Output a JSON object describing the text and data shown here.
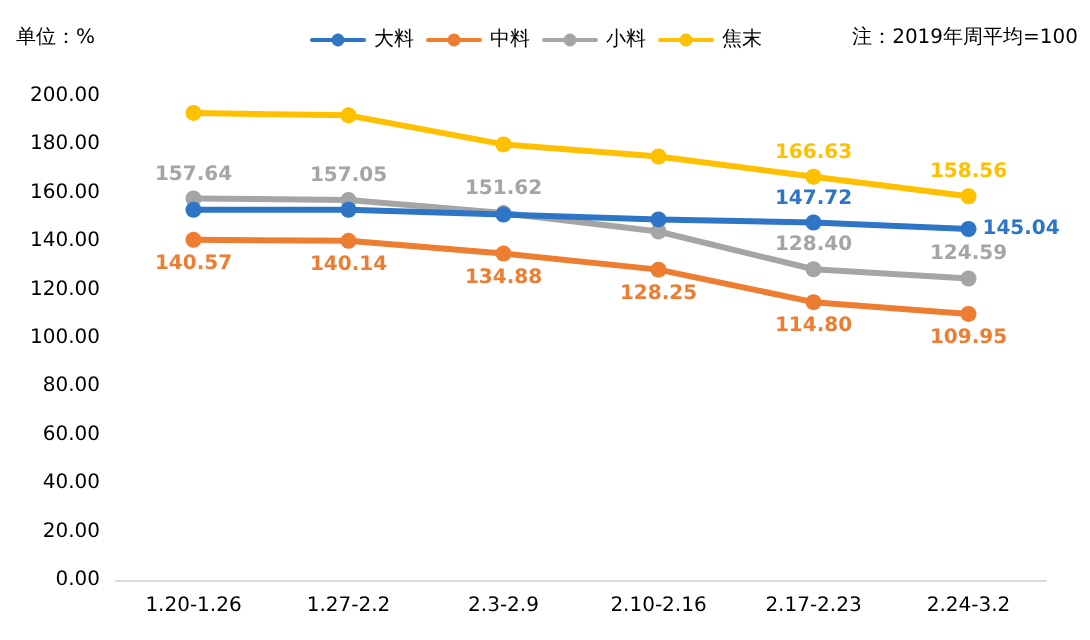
{
  "chart_data": {
    "type": "line",
    "categories": [
      "1.20-1.26",
      "1.27-2.2",
      "2.3-2.9",
      "2.10-2.16",
      "2.17-2.23",
      "2.24-3.2"
    ],
    "series": [
      {
        "name": "大料",
        "color": "#2e75c6",
        "values": [
          153,
          153,
          151,
          149,
          147.72,
          145.04
        ],
        "value_labels": [
          null,
          null,
          null,
          null,
          "147.72",
          "145.04"
        ]
      },
      {
        "name": "中料",
        "color": "#ed7d31",
        "values": [
          140.57,
          140.14,
          134.88,
          128.25,
          114.8,
          109.95
        ],
        "value_labels": [
          "140.57",
          "140.14",
          "134.88",
          "128.25",
          "114.80",
          "109.95"
        ]
      },
      {
        "name": "小料",
        "color": "#a5a5a5",
        "values": [
          157.64,
          157.05,
          151.62,
          144,
          128.4,
          124.59
        ],
        "value_labels": [
          "157.64",
          "157.05",
          "151.62",
          null,
          "128.40",
          "124.59"
        ]
      },
      {
        "name": "焦末",
        "color": "#ffc000",
        "values": [
          193,
          192,
          180,
          175,
          166.63,
          158.56
        ],
        "value_labels": [
          null,
          null,
          null,
          null,
          "166.63",
          "158.56"
        ]
      }
    ],
    "ylim": [
      0,
      200
    ],
    "yticks": [
      {
        "value": 0,
        "label": "0.00"
      },
      {
        "value": 20,
        "label": "20.00"
      },
      {
        "value": 40,
        "label": "40.00"
      },
      {
        "value": 60,
        "label": "60.00"
      },
      {
        "value": 80,
        "label": "80.00"
      },
      {
        "value": 100,
        "label": "100.00"
      },
      {
        "value": 120,
        "label": "120.00"
      },
      {
        "value": 140,
        "label": "140.00"
      },
      {
        "value": 160,
        "label": "160.00"
      },
      {
        "value": 180,
        "label": "180.00"
      },
      {
        "value": 200,
        "label": "200.00"
      }
    ],
    "annotations": [
      "单位：%",
      "注：2019年周平均=100"
    ],
    "legend": "top",
    "grid": false,
    "marker": "circle",
    "line_style": "solid"
  }
}
